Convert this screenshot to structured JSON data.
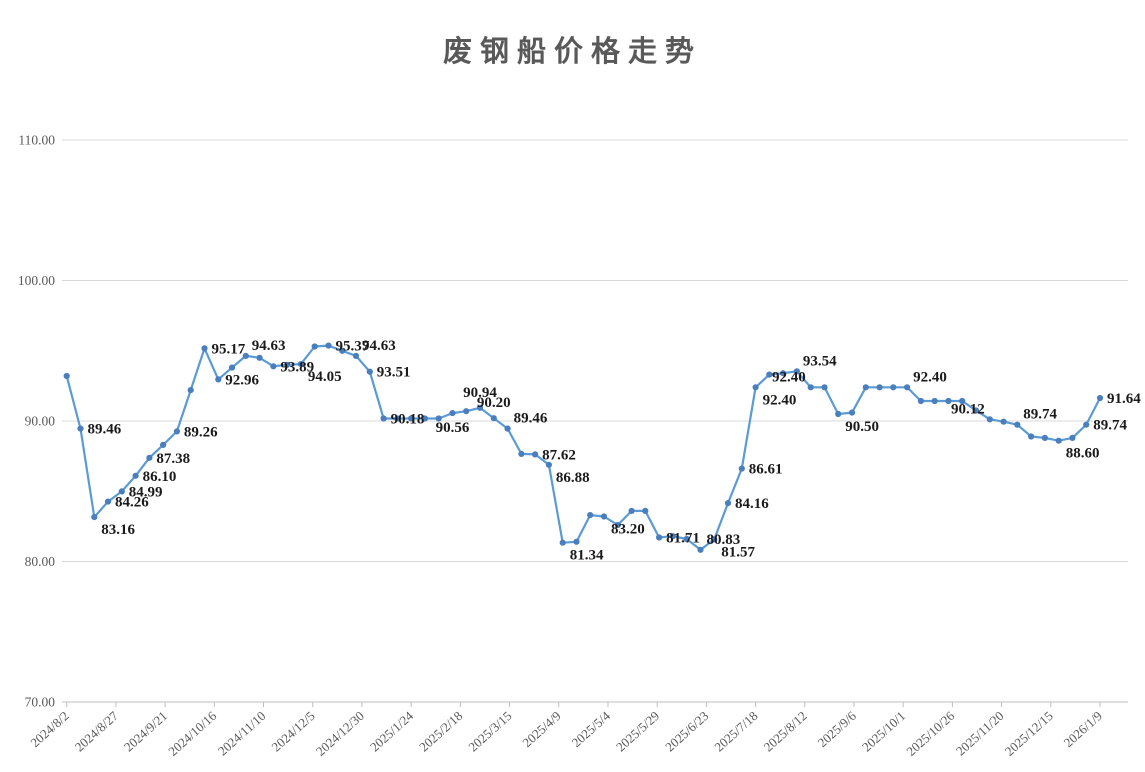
{
  "title": "废钢船价格走势",
  "colors": {
    "line": "#5b9bd5",
    "marker": "#4a7ebd",
    "grid": "#d9d9d9",
    "axis": "#bfbfbf",
    "tick_text": "#595959",
    "data_label": "#1a1a1a",
    "title_text": "#595959",
    "background": "#ffffff"
  },
  "chart_data": {
    "type": "line",
    "title": "废钢船价格走势",
    "xlabel": "",
    "ylabel": "",
    "ylim": [
      70,
      110
    ],
    "grid": "horizontal",
    "legend": "none",
    "marker": "circle",
    "y_tick_values": [
      70,
      80,
      90,
      100,
      110
    ],
    "y_tick_labels": [
      "70.00",
      "80.00",
      "90.00",
      "100.00",
      "110.00"
    ],
    "x_tick_labels": [
      "2024/8/2",
      "2024/8/27",
      "2024/9/21",
      "2024/10/16",
      "2024/11/10",
      "2024/12/5",
      "2024/12/30",
      "2025/1/24",
      "2025/2/18",
      "2025/3/15",
      "2025/4/9",
      "2025/5/4",
      "2025/5/29",
      "2025/6/23",
      "2025/7/18",
      "2025/8/12",
      "2025/9/6",
      "2025/10/1",
      "2025/10/26",
      "2025/11/20",
      "2025/12/15",
      "2026/1/9"
    ],
    "series": [
      {
        "color": "#5b9bd5",
        "marker_color": "#4a7ebd",
        "values": [
          93.2,
          89.46,
          83.16,
          84.26,
          84.99,
          86.1,
          87.38,
          88.3,
          89.26,
          92.2,
          95.17,
          92.96,
          93.8,
          94.63,
          94.5,
          93.89,
          94.0,
          94.05,
          95.3,
          95.37,
          95.0,
          94.63,
          93.51,
          90.18,
          90.18,
          90.18,
          90.18,
          90.18,
          90.56,
          90.7,
          90.94,
          90.2,
          89.46,
          87.66,
          87.62,
          86.88,
          81.34,
          81.4,
          83.3,
          83.2,
          82.6,
          83.6,
          83.6,
          81.71,
          81.8,
          81.6,
          80.83,
          81.57,
          84.16,
          86.61,
          92.4,
          93.3,
          93.4,
          93.54,
          92.4,
          92.4,
          90.5,
          90.6,
          92.4,
          92.4,
          92.4,
          92.4,
          91.42,
          91.42,
          91.42,
          91.42,
          90.75,
          90.12,
          89.95,
          89.74,
          88.9,
          88.8,
          88.6,
          88.8,
          89.74,
          91.64
        ]
      }
    ],
    "point_labels": [
      {
        "index": 1,
        "text": "89.46",
        "pos": "r"
      },
      {
        "index": 2,
        "text": "83.16",
        "pos": "br"
      },
      {
        "index": 3,
        "text": "84.26",
        "pos": "r"
      },
      {
        "index": 4,
        "text": "84.99",
        "pos": "r"
      },
      {
        "index": 5,
        "text": "86.10",
        "pos": "r"
      },
      {
        "index": 6,
        "text": "87.38",
        "pos": "r"
      },
      {
        "index": 8,
        "text": "89.26",
        "pos": "r"
      },
      {
        "index": 10,
        "text": "95.17",
        "pos": "r"
      },
      {
        "index": 11,
        "text": "92.96",
        "pos": "r"
      },
      {
        "index": 13,
        "text": "94.63",
        "pos": "ar"
      },
      {
        "index": 15,
        "text": "93.89",
        "pos": "r"
      },
      {
        "index": 17,
        "text": "94.05",
        "pos": "br"
      },
      {
        "index": 19,
        "text": "95.37",
        "pos": "r"
      },
      {
        "index": 21,
        "text": "94.63",
        "pos": "ar"
      },
      {
        "index": 22,
        "text": "93.51",
        "pos": "r"
      },
      {
        "index": 23,
        "text": "90.18",
        "pos": "r"
      },
      {
        "index": 28,
        "text": "90.56",
        "pos": "b"
      },
      {
        "index": 30,
        "text": "90.94",
        "pos": "a"
      },
      {
        "index": 31,
        "text": "90.20",
        "pos": "a"
      },
      {
        "index": 32,
        "text": "89.46",
        "pos": "ar"
      },
      {
        "index": 34,
        "text": "87.62",
        "pos": "r"
      },
      {
        "index": 35,
        "text": "86.88",
        "pos": "br"
      },
      {
        "index": 36,
        "text": "81.34",
        "pos": "br"
      },
      {
        "index": 39,
        "text": "83.20",
        "pos": "br"
      },
      {
        "index": 43,
        "text": "81.71",
        "pos": "r"
      },
      {
        "index": 46,
        "text": "80.83",
        "pos": "ar"
      },
      {
        "index": 47,
        "text": "81.57",
        "pos": "br"
      },
      {
        "index": 48,
        "text": "84.16",
        "pos": "r"
      },
      {
        "index": 49,
        "text": "86.61",
        "pos": "r"
      },
      {
        "index": 50,
        "text": "92.40",
        "pos": "br"
      },
      {
        "index": 53,
        "text": "93.54",
        "pos": "ar"
      },
      {
        "index": 54,
        "text": "92.40",
        "pos": "al"
      },
      {
        "index": 56,
        "text": "90.50",
        "pos": "br"
      },
      {
        "index": 61,
        "text": "92.40",
        "pos": "ar"
      },
      {
        "index": 67,
        "text": "90.12",
        "pos": "al"
      },
      {
        "index": 69,
        "text": "89.74",
        "pos": "ar"
      },
      {
        "index": 72,
        "text": "88.60",
        "pos": "br"
      },
      {
        "index": 74,
        "text": "89.74",
        "pos": "r"
      },
      {
        "index": 75,
        "text": "91.64",
        "pos": "r"
      }
    ]
  }
}
